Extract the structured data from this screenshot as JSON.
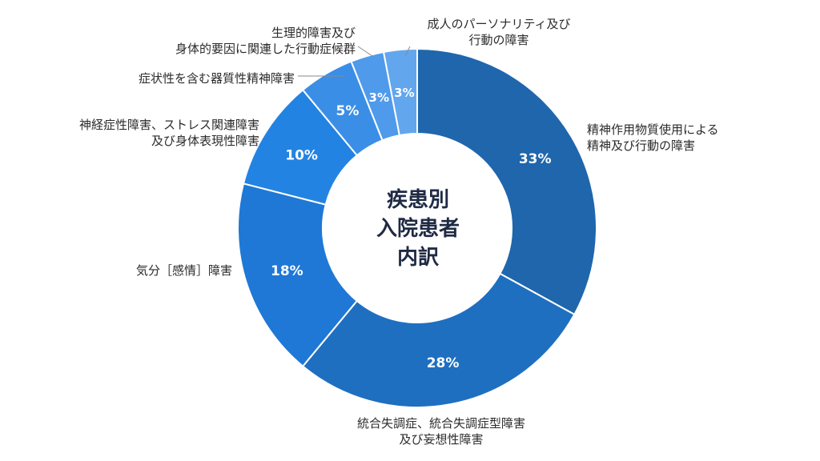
{
  "chart_data": {
    "type": "pie",
    "donut": true,
    "title_lines": [
      "疾患別",
      "入院患者",
      "内訳"
    ],
    "slices": [
      {
        "label_lines": [
          "精神作用物質使用による",
          "精神及び行動の障害"
        ],
        "value": 33,
        "value_label": "33%",
        "color": "#1f66ad"
      },
      {
        "label_lines": [
          "統合失調症、統合失調症型障害",
          "及び妄想性障害"
        ],
        "value": 28,
        "value_label": "28%",
        "color": "#1f6fc0"
      },
      {
        "label_lines": [
          "気分［感情］障害"
        ],
        "value": 18,
        "value_label": "18%",
        "color": "#1f78d6"
      },
      {
        "label_lines": [
          "神経症性障害、ストレス関連障害",
          "及び身体表現性障害"
        ],
        "value": 10,
        "value_label": "10%",
        "color": "#2383e2"
      },
      {
        "label_lines": [
          "症状性を含む器質性精神障害"
        ],
        "value": 5,
        "value_label": "5%",
        "color": "#3a8ee6"
      },
      {
        "label_lines": [
          "生理的障害及び",
          "身体的要因に関連した行動症候群"
        ],
        "value": 3,
        "value_label": "3%",
        "color": "#4f9aea"
      },
      {
        "label_lines": [
          "成人のパーソナリティ及び",
          "行動の障害"
        ],
        "value": 3,
        "value_label": "3%",
        "color": "#62a6ee"
      }
    ]
  }
}
